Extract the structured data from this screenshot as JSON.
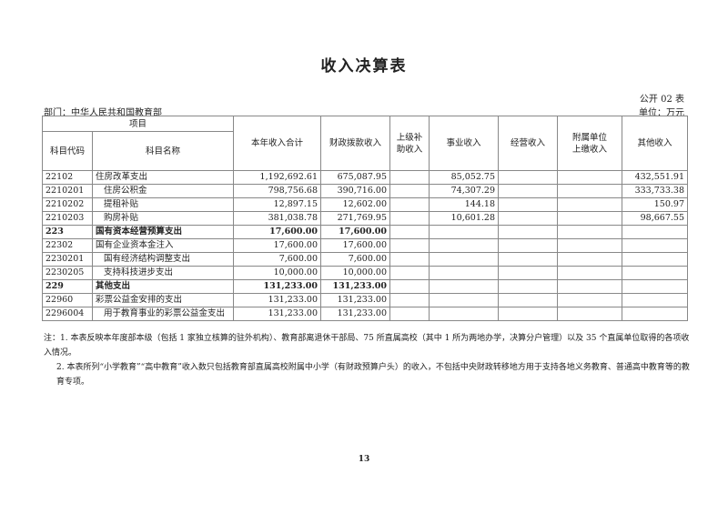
{
  "title": "收入决算表",
  "form_no": "公开 02 表",
  "department": "部门：中华人民共和国教育部",
  "unit": "单位：万元",
  "headers": {
    "item": "项目",
    "code": "科目代码",
    "name": "科目名称",
    "total": "本年收入合计",
    "fiscal": "财政拨款收入",
    "superior": "上级补助收入",
    "business": "事业收入",
    "operating": "经营收入",
    "affiliated": "附属单位上缴收入",
    "other": "其他收入"
  },
  "rows": [
    {
      "code": "22102",
      "name": "住房改革支出",
      "total": "1,192,692.61",
      "fiscal": "675,087.95",
      "superior": "",
      "business": "85,052.75",
      "operating": "",
      "affiliated": "",
      "other": "432,551.91"
    },
    {
      "code": "2210201",
      "name": "住房公积金",
      "total": "798,756.68",
      "fiscal": "390,716.00",
      "superior": "",
      "business": "74,307.29",
      "operating": "",
      "affiliated": "",
      "other": "333,733.38"
    },
    {
      "code": "2210202",
      "name": "提租补贴",
      "total": "12,897.15",
      "fiscal": "12,602.00",
      "superior": "",
      "business": "144.18",
      "operating": "",
      "affiliated": "",
      "other": "150.97"
    },
    {
      "code": "2210203",
      "name": "购房补贴",
      "total": "381,038.78",
      "fiscal": "271,769.95",
      "superior": "",
      "business": "10,601.28",
      "operating": "",
      "affiliated": "",
      "other": "98,667.55"
    },
    {
      "code": "223",
      "name": "国有资本经营预算支出",
      "total": "17,600.00",
      "fiscal": "17,600.00",
      "superior": "",
      "business": "",
      "operating": "",
      "affiliated": "",
      "other": ""
    },
    {
      "code": "22302",
      "name": "国有企业资本金注入",
      "total": "17,600.00",
      "fiscal": "17,600.00",
      "superior": "",
      "business": "",
      "operating": "",
      "affiliated": "",
      "other": ""
    },
    {
      "code": "2230201",
      "name": "国有经济结构调整支出",
      "total": "7,600.00",
      "fiscal": "7,600.00",
      "superior": "",
      "business": "",
      "operating": "",
      "affiliated": "",
      "other": ""
    },
    {
      "code": "2230205",
      "name": "支持科技进步支出",
      "total": "10,000.00",
      "fiscal": "10,000.00",
      "superior": "",
      "business": "",
      "operating": "",
      "affiliated": "",
      "other": ""
    },
    {
      "code": "229",
      "name": "其他支出",
      "total": "131,233.00",
      "fiscal": "131,233.00",
      "superior": "",
      "business": "",
      "operating": "",
      "affiliated": "",
      "other": ""
    },
    {
      "code": "22960",
      "name": "彩票公益金安排的支出",
      "total": "131,233.00",
      "fiscal": "131,233.00",
      "superior": "",
      "business": "",
      "operating": "",
      "affiliated": "",
      "other": ""
    },
    {
      "code": "2296004",
      "name": "用于教育事业的彩票公益金支出",
      "total": "131,233.00",
      "fiscal": "131,233.00",
      "superior": "",
      "business": "",
      "operating": "",
      "affiliated": "",
      "other": ""
    }
  ],
  "notes": [
    "注：1. 本表反映本年度部本级（包括 1 家独立核算的驻外机构）、教育部离退休干部局、75 所直属高校（其中 1 所为两地办学，决算分户管理）以及 35 个直属单位取得的各项收入情况。",
    "2. 本表所列“小学教育”“高中教育”收入数只包括教育部直属高校附属中小学（有财政预算户头）的收入，不包括中央财政转移地方用于支持各地义务教育、普通高中教育等的教育专项。"
  ],
  "page_number": "13"
}
